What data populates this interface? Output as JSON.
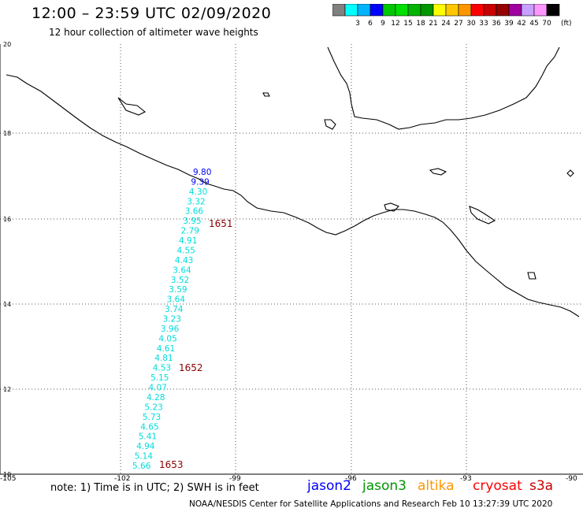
{
  "header": {
    "title": "12:00 – 23:59 UTC 02/09/2020",
    "subtitle": "12 hour collection of altimeter wave heights"
  },
  "legend": {
    "unit_label": "(ft)",
    "bins": [
      {
        "label": "",
        "color": "#808080"
      },
      {
        "label": "3",
        "color": "#00ffff"
      },
      {
        "label": "6",
        "color": "#00b4ff"
      },
      {
        "label": "9",
        "color": "#0000ff"
      },
      {
        "label": "12",
        "color": "#00c800"
      },
      {
        "label": "15",
        "color": "#00e000"
      },
      {
        "label": "18",
        "color": "#00b400"
      },
      {
        "label": "21",
        "color": "#009600"
      },
      {
        "label": "24",
        "color": "#ffff00"
      },
      {
        "label": "27",
        "color": "#ffc800"
      },
      {
        "label": "30",
        "color": "#ff9600"
      },
      {
        "label": "33",
        "color": "#ff0000"
      },
      {
        "label": "36",
        "color": "#c80000"
      },
      {
        "label": "39",
        "color": "#960000"
      },
      {
        "label": "42",
        "color": "#a000a0"
      },
      {
        "label": "45",
        "color": "#c8a0ff"
      },
      {
        "label": "70",
        "color": "#ff96ff"
      },
      {
        "label": "",
        "color": "#000000"
      }
    ]
  },
  "axes": {
    "lat_labels": [
      "20",
      "18",
      "16",
      "14",
      "12",
      "10"
    ],
    "lon_labels": [
      "-105",
      "-102",
      "-99",
      "-96",
      "-93",
      "-90"
    ]
  },
  "observations": {
    "colors": {
      "jason2": "#0000ff",
      "cyan": "#00dcdc",
      "time": "#8b0000"
    },
    "track": [
      {
        "value": "9.80",
        "color": "blue"
      },
      {
        "value": "9.39",
        "color": "blue"
      },
      {
        "value": "4.30",
        "color": "cyan"
      },
      {
        "value": "3.32",
        "color": "cyan"
      },
      {
        "value": "3.66",
        "color": "cyan"
      },
      {
        "value": "3.95",
        "color": "cyan"
      },
      {
        "value": "2.79",
        "color": "cyan"
      },
      {
        "value": "4.91",
        "color": "cyan"
      },
      {
        "value": "4.55",
        "color": "cyan"
      },
      {
        "value": "4.43",
        "color": "cyan"
      },
      {
        "value": "3.64",
        "color": "cyan"
      },
      {
        "value": "3.52",
        "color": "cyan"
      },
      {
        "value": "3.59",
        "color": "cyan"
      },
      {
        "value": "3.64",
        "color": "cyan"
      },
      {
        "value": "3.74",
        "color": "cyan"
      },
      {
        "value": "3.23",
        "color": "cyan"
      },
      {
        "value": "3.96",
        "color": "cyan"
      },
      {
        "value": "4.05",
        "color": "cyan"
      },
      {
        "value": "4.61",
        "color": "cyan"
      },
      {
        "value": "4.81",
        "color": "cyan"
      },
      {
        "value": "4.53",
        "color": "cyan"
      },
      {
        "value": "5.15",
        "color": "cyan"
      },
      {
        "value": "4.07",
        "color": "cyan"
      },
      {
        "value": "4.28",
        "color": "cyan"
      },
      {
        "value": "5.23",
        "color": "cyan"
      },
      {
        "value": "5.73",
        "color": "cyan"
      },
      {
        "value": "4.65",
        "color": "cyan"
      },
      {
        "value": "5.41",
        "color": "cyan"
      },
      {
        "value": "4.94",
        "color": "cyan"
      },
      {
        "value": "5.14",
        "color": "cyan"
      },
      {
        "value": "5.66",
        "color": "cyan"
      }
    ],
    "times": [
      "1651",
      "1652",
      "1653"
    ]
  },
  "footer": {
    "note": "note: 1) Time is in UTC; 2) SWH is in feet",
    "satellites": [
      {
        "name": "jason2",
        "color": "#0000ff"
      },
      {
        "name": "jason3",
        "color": "#009600"
      },
      {
        "name": "altika",
        "color": "#ff9600"
      },
      {
        "name": "cryosat",
        "color": "#ff0000"
      },
      {
        "name": "s3a",
        "color": "#c80000"
      }
    ],
    "credit": "NOAA/NESDIS Center for Satellite Applications and Research    Feb 10 13:27:39 UTC 2020"
  }
}
